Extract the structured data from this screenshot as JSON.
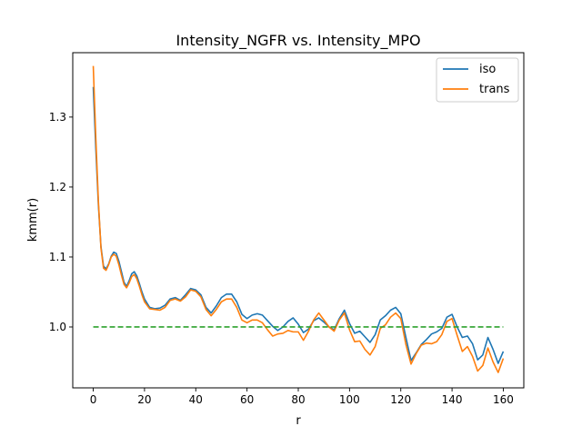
{
  "chart_data": {
    "type": "line",
    "title": "Intensity_NGFR vs. Intensity_MPO",
    "xlabel": "r",
    "ylabel": "kmm(r)",
    "xlim": [
      -8,
      168
    ],
    "ylim": [
      0.913,
      1.392
    ],
    "xticks": [
      0,
      20,
      40,
      60,
      80,
      100,
      120,
      140,
      160
    ],
    "yticks": [
      1.0,
      1.1,
      1.2,
      1.3
    ],
    "xtick_labels": [
      "0",
      "20",
      "40",
      "60",
      "80",
      "100",
      "120",
      "140",
      "160"
    ],
    "ytick_labels": [
      "1.0",
      "1.1",
      "1.2",
      "1.3"
    ],
    "grid": false,
    "legend_position": "top-right",
    "series": [
      {
        "name": "iso",
        "color": "#1f77b4",
        "style": "solid",
        "x": [
          0,
          1,
          2,
          3,
          4,
          5,
          6,
          7,
          8,
          9,
          10,
          11,
          12,
          13,
          14,
          15,
          16,
          17,
          18,
          19,
          20,
          22,
          24,
          26,
          28,
          30,
          32,
          34,
          36,
          38,
          40,
          42,
          44,
          46,
          48,
          50,
          52,
          54,
          56,
          58,
          60,
          62,
          64,
          66,
          68,
          70,
          72,
          74,
          76,
          78,
          80,
          82,
          84,
          86,
          88,
          90,
          92,
          94,
          96,
          98,
          100,
          102,
          104,
          106,
          108,
          110,
          112,
          114,
          116,
          118,
          120,
          122,
          124,
          126,
          128,
          130,
          132,
          134,
          136,
          138,
          140,
          142,
          144,
          146,
          148,
          150,
          152,
          154,
          156,
          158,
          160
        ],
        "y": [
          1.343,
          1.255,
          1.175,
          1.115,
          1.087,
          1.083,
          1.09,
          1.101,
          1.107,
          1.105,
          1.094,
          1.079,
          1.064,
          1.058,
          1.066,
          1.076,
          1.079,
          1.073,
          1.062,
          1.05,
          1.04,
          1.028,
          1.026,
          1.027,
          1.031,
          1.04,
          1.042,
          1.038,
          1.046,
          1.055,
          1.053,
          1.046,
          1.028,
          1.02,
          1.03,
          1.042,
          1.047,
          1.047,
          1.036,
          1.018,
          1.012,
          1.017,
          1.019,
          1.017,
          1.009,
          1.001,
          0.995,
          1.0,
          1.008,
          1.013,
          1.004,
          0.992,
          0.997,
          1.009,
          1.013,
          1.007,
          1.0,
          0.996,
          1.012,
          1.024,
          1.005,
          0.991,
          0.994,
          0.986,
          0.978,
          0.989,
          1.01,
          1.016,
          1.024,
          1.028,
          1.019,
          0.985,
          0.952,
          0.963,
          0.975,
          0.982,
          0.99,
          0.993,
          0.998,
          1.014,
          1.018,
          1.0,
          0.985,
          0.987,
          0.976,
          0.953,
          0.96,
          0.985,
          0.968,
          0.948,
          0.965
        ]
      },
      {
        "name": "trans",
        "color": "#ff7f0e",
        "style": "solid",
        "x": [
          0,
          1,
          2,
          3,
          4,
          5,
          6,
          7,
          8,
          9,
          10,
          11,
          12,
          13,
          14,
          15,
          16,
          17,
          18,
          19,
          20,
          22,
          24,
          26,
          28,
          30,
          32,
          34,
          36,
          38,
          40,
          42,
          44,
          46,
          48,
          50,
          52,
          54,
          56,
          58,
          60,
          62,
          64,
          66,
          68,
          70,
          72,
          74,
          76,
          78,
          80,
          82,
          84,
          86,
          88,
          90,
          92,
          94,
          96,
          98,
          100,
          102,
          104,
          106,
          108,
          110,
          112,
          114,
          116,
          118,
          120,
          122,
          124,
          126,
          128,
          130,
          132,
          134,
          136,
          138,
          140,
          142,
          144,
          146,
          148,
          150,
          152,
          154,
          156,
          158,
          160
        ],
        "y": [
          1.373,
          1.27,
          1.18,
          1.113,
          1.084,
          1.081,
          1.089,
          1.1,
          1.104,
          1.101,
          1.089,
          1.074,
          1.061,
          1.056,
          1.063,
          1.072,
          1.075,
          1.069,
          1.058,
          1.046,
          1.036,
          1.026,
          1.025,
          1.024,
          1.028,
          1.038,
          1.04,
          1.037,
          1.043,
          1.053,
          1.051,
          1.043,
          1.025,
          1.016,
          1.025,
          1.036,
          1.04,
          1.04,
          1.028,
          1.01,
          1.006,
          1.01,
          1.01,
          1.006,
          0.996,
          0.987,
          0.99,
          0.991,
          0.995,
          0.993,
          0.993,
          0.981,
          0.994,
          1.01,
          1.02,
          1.01,
          1.0,
          0.994,
          1.01,
          1.02,
          0.996,
          0.979,
          0.98,
          0.968,
          0.96,
          0.972,
          0.998,
          1.003,
          1.014,
          1.02,
          1.012,
          0.975,
          0.947,
          0.962,
          0.974,
          0.977,
          0.976,
          0.979,
          0.989,
          1.008,
          1.012,
          0.988,
          0.965,
          0.972,
          0.958,
          0.937,
          0.945,
          0.97,
          0.95,
          0.935,
          0.955
        ]
      },
      {
        "name": "",
        "color": "#2ca02c",
        "style": "dashed",
        "x": [
          0,
          160
        ],
        "y": [
          1.0,
          1.0
        ]
      }
    ],
    "legend": [
      "iso",
      "trans"
    ]
  }
}
